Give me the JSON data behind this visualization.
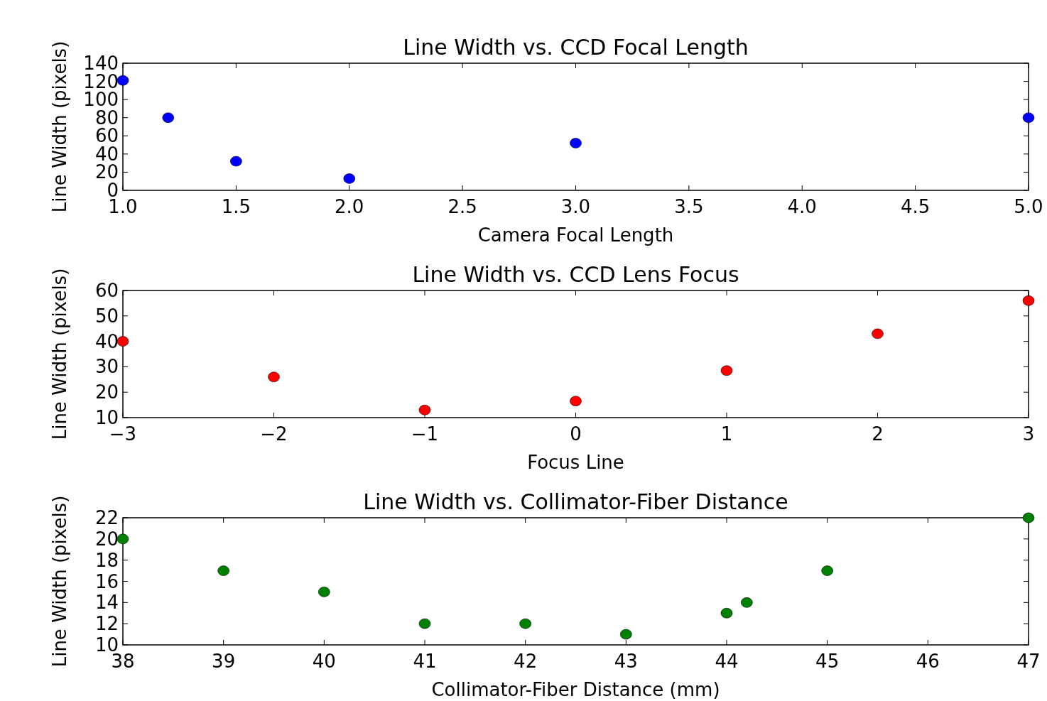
{
  "chart_data": [
    {
      "type": "scatter",
      "title": "Line Width vs. CCD Focal Length",
      "xlabel": "Camera Focal Length",
      "ylabel": "Line Width (pixels)",
      "marker": "circle",
      "grid": false,
      "x": [
        1.0,
        1.2,
        1.5,
        2.0,
        3.0,
        5.0
      ],
      "series": [
        {
          "color": "#0000ff",
          "values": [
            121,
            80,
            32,
            13,
            52,
            80
          ]
        }
      ],
      "xlim": [
        1.0,
        5.0
      ],
      "xticks": [
        {
          "value": 1,
          "label": "1.0"
        },
        1.5,
        {
          "value": 2,
          "label": "2.0"
        },
        2.5,
        {
          "value": 3,
          "label": "3.0"
        },
        3.5,
        {
          "value": 4,
          "label": "4.0"
        },
        4.5,
        {
          "value": 5,
          "label": "5.0"
        }
      ],
      "ylim": [
        0,
        140
      ],
      "yticks": [
        0,
        20,
        40,
        60,
        80,
        100,
        120,
        140
      ]
    },
    {
      "type": "scatter",
      "title": "Line Width vs. CCD Lens Focus",
      "xlabel": "Focus Line",
      "ylabel": "Line Width (pixels)",
      "marker": "circle",
      "grid": false,
      "x": [
        -3,
        -2,
        -1,
        0,
        1,
        2,
        3
      ],
      "series": [
        {
          "color": "#ff0000",
          "values": [
            40,
            26,
            13,
            16.5,
            28.5,
            43,
            56
          ]
        }
      ],
      "xlim": [
        -3,
        3
      ],
      "xticks": [
        {
          "value": -3,
          "label": "−3"
        },
        {
          "value": -2,
          "label": "−2"
        },
        {
          "value": -1,
          "label": "−1"
        },
        0,
        1,
        2,
        3
      ],
      "ylim": [
        10,
        60
      ],
      "yticks": [
        10,
        20,
        30,
        40,
        50,
        60
      ]
    },
    {
      "type": "scatter",
      "title": "Line Width vs. Collimator-Fiber Distance",
      "xlabel": "Collimator-Fiber Distance (mm)",
      "ylabel": "Line Width (pixels)",
      "marker": "circle",
      "grid": false,
      "x": [
        38,
        39,
        40,
        41,
        42,
        43,
        44,
        44.2,
        45,
        47
      ],
      "series": [
        {
          "color": "#008000",
          "values": [
            20,
            17,
            15,
            12,
            12,
            11,
            13,
            14,
            17,
            22
          ]
        }
      ],
      "xlim": [
        38,
        47
      ],
      "xticks": [
        38,
        39,
        40,
        41,
        42,
        43,
        44,
        45,
        46,
        47
      ],
      "ylim": [
        10,
        22
      ],
      "yticks": [
        10,
        12,
        14,
        16,
        18,
        20,
        22
      ]
    }
  ]
}
